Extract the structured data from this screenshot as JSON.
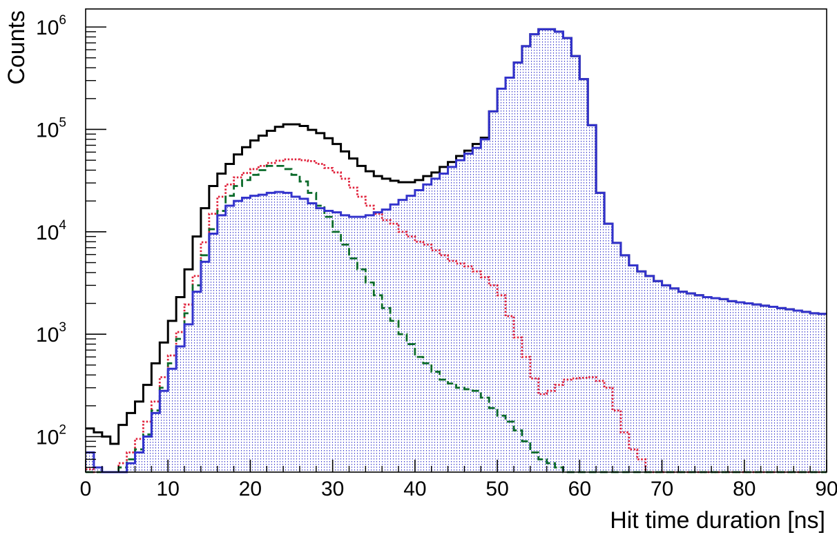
{
  "chart_data": {
    "type": "line",
    "title": "",
    "xlabel": "Hit time duration [ns]",
    "ylabel": "Counts",
    "xlim": [
      0,
      90
    ],
    "ylim": [
      45,
      1500000
    ],
    "yscale": "log",
    "bin_width": 1,
    "grid": false,
    "legend": "none",
    "x_ticks": [
      0,
      10,
      20,
      30,
      40,
      50,
      60,
      70,
      80,
      90
    ],
    "y_ticks": [
      {
        "value": 100,
        "base": "10",
        "exp": "2"
      },
      {
        "value": 1000,
        "base": "10",
        "exp": "3"
      },
      {
        "value": 10000,
        "base": "10",
        "exp": "4"
      },
      {
        "value": 100000,
        "base": "10",
        "exp": "5"
      },
      {
        "value": 1000000,
        "base": "10",
        "exp": "6"
      }
    ],
    "x_bins": [
      0,
      1,
      2,
      3,
      4,
      5,
      6,
      7,
      8,
      9,
      10,
      11,
      12,
      13,
      14,
      15,
      16,
      17,
      18,
      19,
      20,
      21,
      22,
      23,
      24,
      25,
      26,
      27,
      28,
      29,
      30,
      31,
      32,
      33,
      34,
      35,
      36,
      37,
      38,
      39,
      40,
      41,
      42,
      43,
      44,
      45,
      46,
      47,
      48,
      49,
      50,
      51,
      52,
      53,
      54,
      55,
      56,
      57,
      58,
      59,
      60,
      61,
      62,
      63,
      64,
      65,
      66,
      67,
      68,
      69,
      70,
      71,
      72,
      73,
      74,
      75,
      76,
      77,
      78,
      79,
      80,
      81,
      82,
      83,
      84,
      85,
      86,
      87,
      88,
      89
    ],
    "series": [
      {
        "color": "#000000",
        "style": "solid",
        "fill": false,
        "values": [
          120,
          110,
          100,
          85,
          130,
          170,
          220,
          320,
          520,
          830,
          1350,
          2300,
          4300,
          9000,
          17000,
          28000,
          37000,
          46000,
          57000,
          67000,
          78000,
          87000,
          97000,
          106000,
          112000,
          112000,
          108000,
          99000,
          92000,
          82000,
          72000,
          61000,
          52000,
          44000,
          39000,
          35000,
          33000,
          31500,
          30500,
          30500,
          32000,
          35000,
          38000,
          43000,
          48000,
          55000,
          62000,
          72000,
          83000,
          150000,
          250000,
          320000,
          450000,
          650000,
          850000,
          950000,
          950000,
          900000,
          780000,
          520000,
          310000,
          110000,
          24000,
          12000,
          7800,
          5900,
          4700,
          4100,
          3700,
          3300,
          3000,
          2800,
          2600,
          2500,
          2400,
          2300,
          2250,
          2200,
          2100,
          2050,
          2000,
          1950,
          1900,
          1850,
          1800,
          1750,
          1700,
          1650,
          1600,
          1580
        ]
      },
      {
        "color": "#e0203a",
        "style": "dotted",
        "fill": false,
        "values": [
          48,
          45,
          45,
          45,
          55,
          70,
          95,
          140,
          220,
          380,
          620,
          1050,
          1950,
          3700,
          7900,
          15000,
          22000,
          29000,
          34000,
          37500,
          41000,
          44000,
          47000,
          49500,
          51000,
          51000,
          50000,
          49000,
          46000,
          42000,
          38000,
          33000,
          27000,
          22000,
          18000,
          15000,
          13000,
          12000,
          10000,
          9000,
          8000,
          7500,
          6600,
          5900,
          5200,
          4900,
          4600,
          4100,
          3600,
          3000,
          2400,
          1500,
          930,
          600,
          370,
          260,
          280,
          320,
          360,
          370,
          375,
          380,
          350,
          300,
          180,
          110,
          75,
          60,
          45,
          45,
          45,
          45,
          45,
          45,
          45,
          45,
          45,
          45,
          45,
          45,
          45,
          45,
          45,
          45,
          45,
          45,
          45,
          45,
          45,
          45
        ]
      },
      {
        "color": "#0a6a2a",
        "style": "dashed",
        "fill": false,
        "values": [
          45,
          45,
          45,
          45,
          50,
          60,
          75,
          105,
          180,
          300,
          520,
          900,
          1600,
          3000,
          5900,
          10600,
          16000,
          22500,
          28000,
          32000,
          36000,
          40000,
          44000,
          44000,
          41000,
          36000,
          31000,
          24000,
          18000,
          14000,
          10000,
          7500,
          5500,
          4300,
          3200,
          2400,
          1800,
          1350,
          1000,
          800,
          600,
          520,
          430,
          360,
          330,
          300,
          290,
          280,
          240,
          190,
          160,
          140,
          115,
          90,
          70,
          60,
          55,
          50,
          45,
          45,
          45,
          45,
          45,
          45,
          45,
          45,
          45,
          45,
          45,
          45,
          45,
          45,
          45,
          45,
          45,
          45,
          45,
          45,
          45,
          45,
          45,
          45,
          45,
          45,
          45,
          45,
          45,
          45,
          45,
          45
        ]
      },
      {
        "color": "#3333cc",
        "style": "solid",
        "fill": true,
        "values": [
          70,
          50,
          45,
          45,
          45,
          55,
          70,
          100,
          170,
          280,
          460,
          760,
          1250,
          2600,
          5100,
          9600,
          14500,
          18000,
          20000,
          21500,
          22500,
          23000,
          24000,
          24500,
          24000,
          22000,
          21000,
          19000,
          17000,
          16000,
          15500,
          14500,
          14000,
          14000,
          14500,
          15500,
          16500,
          18500,
          20500,
          22500,
          25500,
          29000,
          33000,
          37000,
          43000,
          50000,
          58000,
          66000,
          80000,
          150000,
          250000,
          320000,
          450000,
          650000,
          850000,
          950000,
          950000,
          900000,
          780000,
          520000,
          310000,
          110000,
          24000,
          12000,
          7800,
          5900,
          4700,
          4100,
          3700,
          3300,
          3000,
          2800,
          2600,
          2500,
          2400,
          2300,
          2250,
          2200,
          2100,
          2050,
          2000,
          1950,
          1900,
          1850,
          1800,
          1750,
          1700,
          1650,
          1600,
          1580
        ]
      }
    ]
  }
}
